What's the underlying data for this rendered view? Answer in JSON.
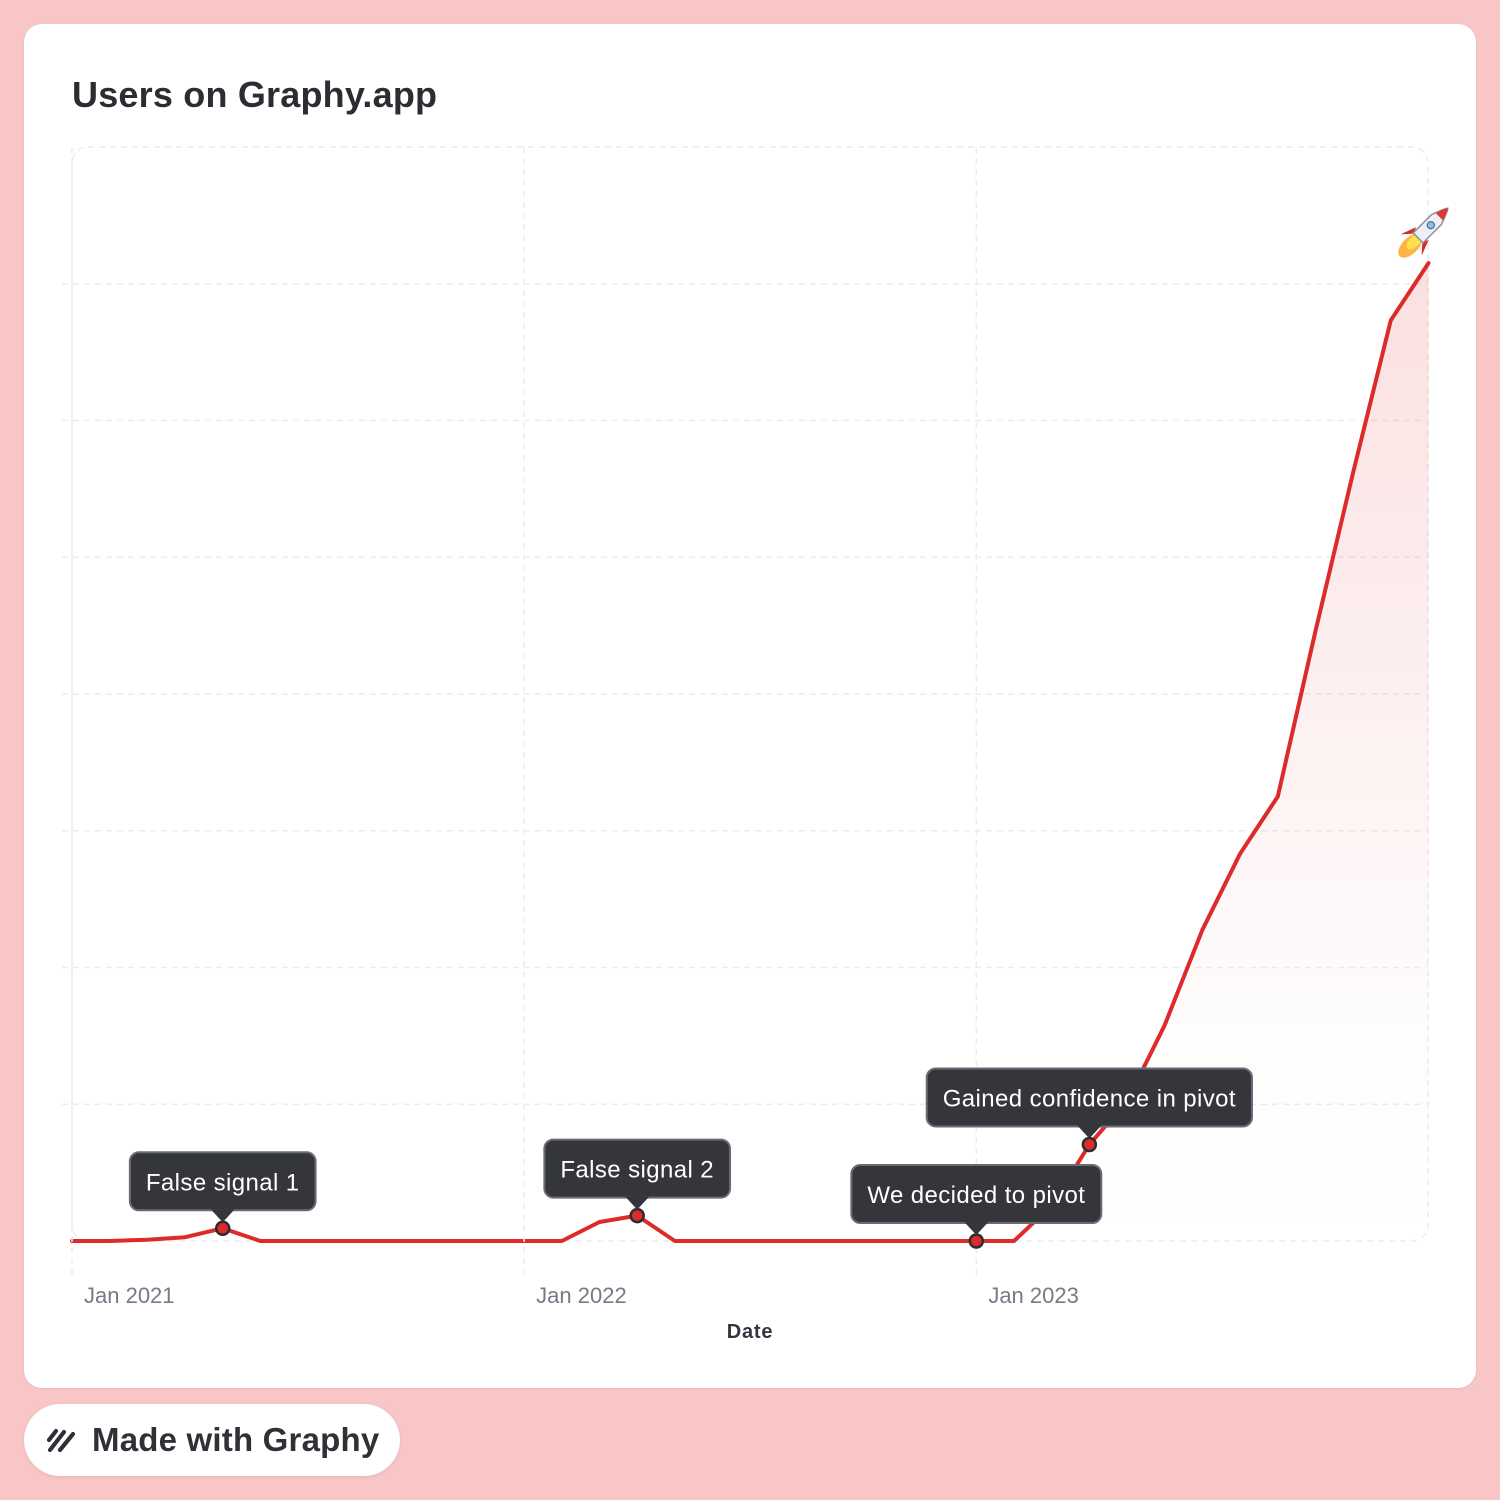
{
  "brand": {
    "page_background": "#f8c6c6",
    "line_color": "#dd2a2a",
    "made_with_label": "Made with Graphy"
  },
  "chart_data": {
    "type": "line",
    "title": "Users on Graphy.app",
    "xlabel": "Date",
    "ylabel": "",
    "x_ticks": [
      "Jan 2021",
      "Jan 2022",
      "Jan 2023"
    ],
    "x": [
      "2021-01",
      "2021-02",
      "2021-03",
      "2021-04",
      "2021-05",
      "2021-06",
      "2021-07",
      "2021-08",
      "2021-09",
      "2021-10",
      "2021-11",
      "2021-12",
      "2022-01",
      "2022-02",
      "2022-03",
      "2022-04",
      "2022-05",
      "2022-06",
      "2022-07",
      "2022-08",
      "2022-09",
      "2022-10",
      "2022-11",
      "2022-12",
      "2023-01",
      "2023-02",
      "2023-03",
      "2023-04",
      "2023-05",
      "2023-06",
      "2023-07",
      "2023-08",
      "2023-09",
      "2023-10",
      "2023-11",
      "2023-12",
      "2024-01"
    ],
    "series": [
      {
        "values": [
          0,
          0,
          1,
          3,
          10,
          0,
          0,
          0,
          0,
          0,
          0,
          0,
          0,
          0,
          15,
          20,
          0,
          0,
          0,
          0,
          0,
          0,
          0,
          0,
          0,
          0,
          28,
          76,
          110,
          170,
          245,
          305,
          350,
          480,
          605,
          725,
          770
        ]
      }
    ],
    "annotations": [
      {
        "x": "2021-05",
        "text": "False signal 1"
      },
      {
        "x": "2022-04",
        "text": "False signal 2"
      },
      {
        "x": "2023-01",
        "text": "We decided to pivot"
      },
      {
        "x": "2023-04",
        "text": "Gained confidence in pivot"
      }
    ],
    "end_marker": "rocket-emoji",
    "ylim": [
      0,
      800
    ],
    "y_ticks_shown": false,
    "grid": true
  }
}
